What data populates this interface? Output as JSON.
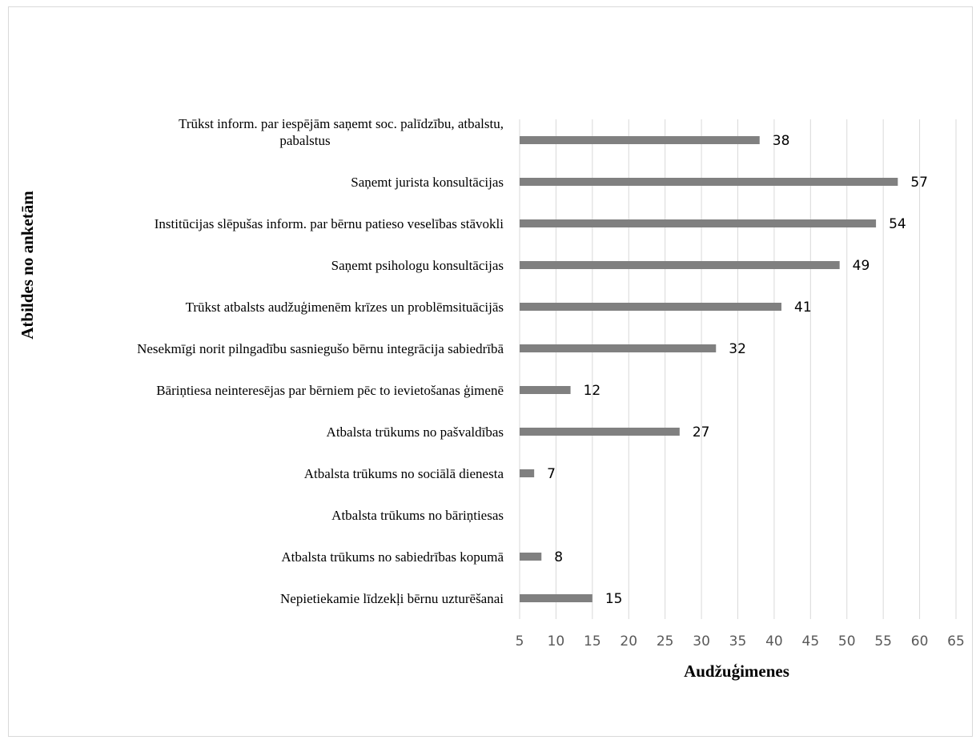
{
  "chart_data": {
    "type": "bar",
    "orientation": "horizontal",
    "title": "",
    "xlabel": "Audžuģimenes",
    "ylabel": "Atbildes no anketām",
    "xlim": [
      5,
      65
    ],
    "xticks": [
      5,
      10,
      15,
      20,
      25,
      30,
      35,
      40,
      45,
      50,
      55,
      60,
      65
    ],
    "grid": true,
    "legend": "none",
    "bar_color": "#808080",
    "categories": [
      [
        "Trūkst inform. par iespējām saņemt  soc. palīdzību, atbalstu,",
        "pabalstus"
      ],
      [
        "Saņemt jurista konsultācijas"
      ],
      [
        "Institūcijas slēpušas inform. par bērnu patieso veselības stāvokli"
      ],
      [
        "Saņemt psihologu konsultācijas"
      ],
      [
        "Trūkst atbalsts audžuģimenēm krīzes un problēmsituācijās"
      ],
      [
        "Nesekmīgi norit pilngadību sasniegušo bērnu integrācija sabiedrībā"
      ],
      [
        "Bāriņtiesa neinteresējas par bērniem pēc to ievietošanas ģimenē"
      ],
      [
        "Atbalsta trūkums no pašvaldības"
      ],
      [
        "Atbalsta trūkums no sociālā dienesta"
      ],
      [
        "Atbalsta trūkums no bāriņtiesas"
      ],
      [
        "Atbalsta trūkums no sabiedrības kopumā"
      ],
      [
        "Nepietiekamie līdzekļi bērnu uzturēšanai"
      ]
    ],
    "values": [
      38,
      57,
      54,
      49,
      41,
      32,
      12,
      27,
      7,
      null,
      8,
      15
    ],
    "data_labels": [
      "38",
      "57",
      "54",
      "49",
      "41",
      "32",
      "12",
      "27",
      "7",
      "",
      "8",
      "15"
    ]
  }
}
